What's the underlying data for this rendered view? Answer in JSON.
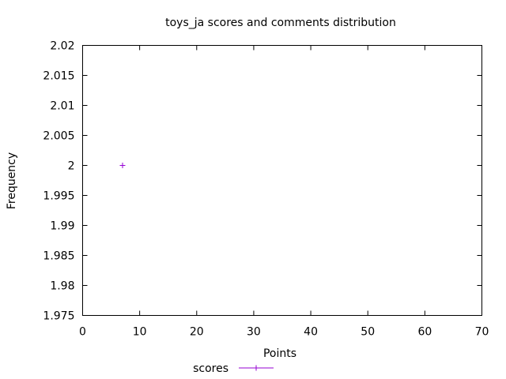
{
  "chart_data": {
    "type": "scatter",
    "title": "toys_ja scores and comments distribution",
    "xlabel": "Points",
    "ylabel": "Frequency",
    "xlim": [
      0,
      70
    ],
    "ylim": [
      1.975,
      2.02
    ],
    "x_ticks": [
      {
        "value": 0,
        "label": "0"
      },
      {
        "value": 10,
        "label": "10"
      },
      {
        "value": 20,
        "label": "20"
      },
      {
        "value": 30,
        "label": "30"
      },
      {
        "value": 40,
        "label": "40"
      },
      {
        "value": 50,
        "label": "50"
      },
      {
        "value": 60,
        "label": "60"
      },
      {
        "value": 70,
        "label": "70"
      }
    ],
    "y_ticks": [
      {
        "value": 1.975,
        "label": "1.975"
      },
      {
        "value": 1.98,
        "label": "1.98"
      },
      {
        "value": 1.985,
        "label": "1.985"
      },
      {
        "value": 1.99,
        "label": "1.99"
      },
      {
        "value": 1.995,
        "label": "1.995"
      },
      {
        "value": 2.0,
        "label": "2"
      },
      {
        "value": 2.005,
        "label": "2.005"
      },
      {
        "value": 2.01,
        "label": "2.01"
      },
      {
        "value": 2.015,
        "label": "2.015"
      },
      {
        "value": 2.02,
        "label": "2.02"
      }
    ],
    "grid": false,
    "legend": "bottom-center",
    "series": [
      {
        "name": "scores",
        "color": "#9400d3",
        "marker": "plus",
        "points": [
          {
            "x": 7,
            "y": 2
          }
        ]
      }
    ]
  }
}
